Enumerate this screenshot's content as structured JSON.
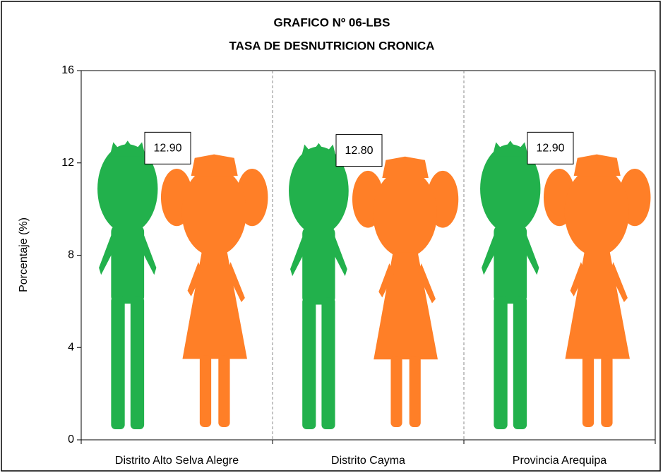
{
  "chart_data": {
    "type": "bar",
    "title": [
      "GRAFICO Nº 06-LBS",
      "TASA DE DESNUTRICION CRONICA"
    ],
    "y_label": "Porcentaje (%)",
    "categories": [
      "Distrito Alto Selva Alegre",
      "Distrito Cayma",
      "Provincia Arequipa"
    ],
    "values": [
      12.9,
      12.8,
      12.9
    ],
    "value_labels": [
      "12.90",
      "12.80",
      "12.90"
    ],
    "colors": [
      "#22b14c",
      "#ff7f27"
    ],
    "ylim": [
      0,
      16
    ],
    "yticks": [
      0,
      4,
      8,
      12,
      16
    ]
  }
}
